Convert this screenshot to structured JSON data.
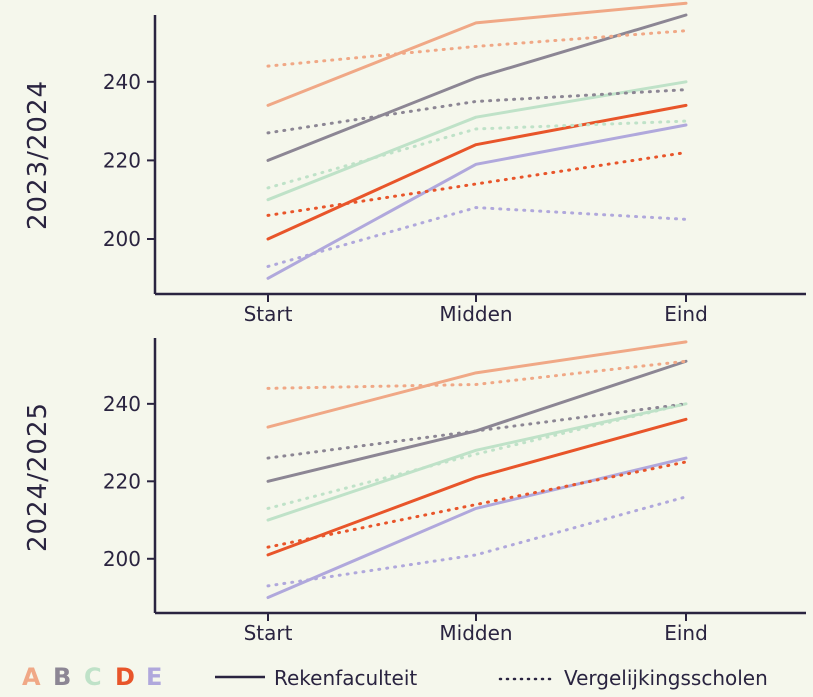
{
  "chart_data": [
    {
      "type": "line",
      "title": "2023/2024",
      "categories": [
        "Start",
        "Midden",
        "Eind"
      ],
      "y_ticks": [
        200,
        220,
        240
      ],
      "ylim": [
        186,
        257
      ],
      "series": [
        {
          "name": "A",
          "group": "Rekenfaculteit",
          "style": "solid",
          "color": "#f0a886",
          "values": [
            234,
            255,
            260
          ]
        },
        {
          "name": "B",
          "group": "Rekenfaculteit",
          "style": "solid",
          "color": "#8c8694",
          "values": [
            220,
            241,
            257
          ]
        },
        {
          "name": "C",
          "group": "Rekenfaculteit",
          "style": "solid",
          "color": "#bfe2c8",
          "values": [
            210,
            231,
            240
          ]
        },
        {
          "name": "D",
          "group": "Rekenfaculteit",
          "style": "solid",
          "color": "#e8552a",
          "values": [
            200,
            224,
            234
          ]
        },
        {
          "name": "E",
          "group": "Rekenfaculteit",
          "style": "solid",
          "color": "#b0a8dc",
          "values": [
            190,
            219,
            229
          ]
        },
        {
          "name": "A",
          "group": "Vergelijkingsscholen",
          "style": "dotted",
          "color": "#f0a886",
          "values": [
            244,
            249,
            253
          ]
        },
        {
          "name": "B",
          "group": "Vergelijkingsscholen",
          "style": "dotted",
          "color": "#8c8694",
          "values": [
            227,
            235,
            238
          ]
        },
        {
          "name": "C",
          "group": "Vergelijkingsscholen",
          "style": "dotted",
          "color": "#bfe2c8",
          "values": [
            213,
            228,
            230
          ]
        },
        {
          "name": "D",
          "group": "Vergelijkingsscholen",
          "style": "dotted",
          "color": "#e8552a",
          "values": [
            206,
            214,
            222
          ]
        },
        {
          "name": "E",
          "group": "Vergelijkingsscholen",
          "style": "dotted",
          "color": "#b0a8dc",
          "values": [
            193,
            208,
            205
          ]
        }
      ]
    },
    {
      "type": "line",
      "title": "2024/2025",
      "categories": [
        "Start",
        "Midden",
        "Eind"
      ],
      "y_ticks": [
        200,
        220,
        240
      ],
      "ylim": [
        186,
        257
      ],
      "series": [
        {
          "name": "A",
          "group": "Rekenfaculteit",
          "style": "solid",
          "color": "#f0a886",
          "values": [
            234,
            248,
            256
          ]
        },
        {
          "name": "B",
          "group": "Rekenfaculteit",
          "style": "solid",
          "color": "#8c8694",
          "values": [
            220,
            233,
            251
          ]
        },
        {
          "name": "C",
          "group": "Rekenfaculteit",
          "style": "solid",
          "color": "#bfe2c8",
          "values": [
            210,
            228,
            240
          ]
        },
        {
          "name": "D",
          "group": "Rekenfaculteit",
          "style": "solid",
          "color": "#e8552a",
          "values": [
            201,
            221,
            236
          ]
        },
        {
          "name": "E",
          "group": "Rekenfaculteit",
          "style": "solid",
          "color": "#b0a8dc",
          "values": [
            190,
            213,
            226
          ]
        },
        {
          "name": "A",
          "group": "Vergelijkingsscholen",
          "style": "dotted",
          "color": "#f0a886",
          "values": [
            244,
            245,
            251
          ]
        },
        {
          "name": "B",
          "group": "Vergelijkingsscholen",
          "style": "dotted",
          "color": "#8c8694",
          "values": [
            226,
            233,
            240
          ]
        },
        {
          "name": "C",
          "group": "Vergelijkingsscholen",
          "style": "dotted",
          "color": "#bfe2c8",
          "values": [
            213,
            227,
            240
          ]
        },
        {
          "name": "D",
          "group": "Vergelijkingsscholen",
          "style": "dotted",
          "color": "#e8552a",
          "values": [
            203,
            214,
            225
          ]
        },
        {
          "name": "E",
          "group": "Vergelijkingsscholen",
          "style": "dotted",
          "color": "#b0a8dc",
          "values": [
            193,
            201,
            216
          ]
        }
      ]
    }
  ],
  "legend": {
    "letters": [
      {
        "label": "A",
        "color": "#f0a886"
      },
      {
        "label": "B",
        "color": "#8c8694"
      },
      {
        "label": "C",
        "color": "#bfe2c8"
      },
      {
        "label": "D",
        "color": "#e8552a"
      },
      {
        "label": "E",
        "color": "#b0a8dc"
      }
    ],
    "solid_label": "Rekenfaculteit",
    "dotted_label": "Vergelijkingsscholen"
  },
  "colors": {
    "background": "#f5f7ec",
    "axis": "#2a2440"
  }
}
